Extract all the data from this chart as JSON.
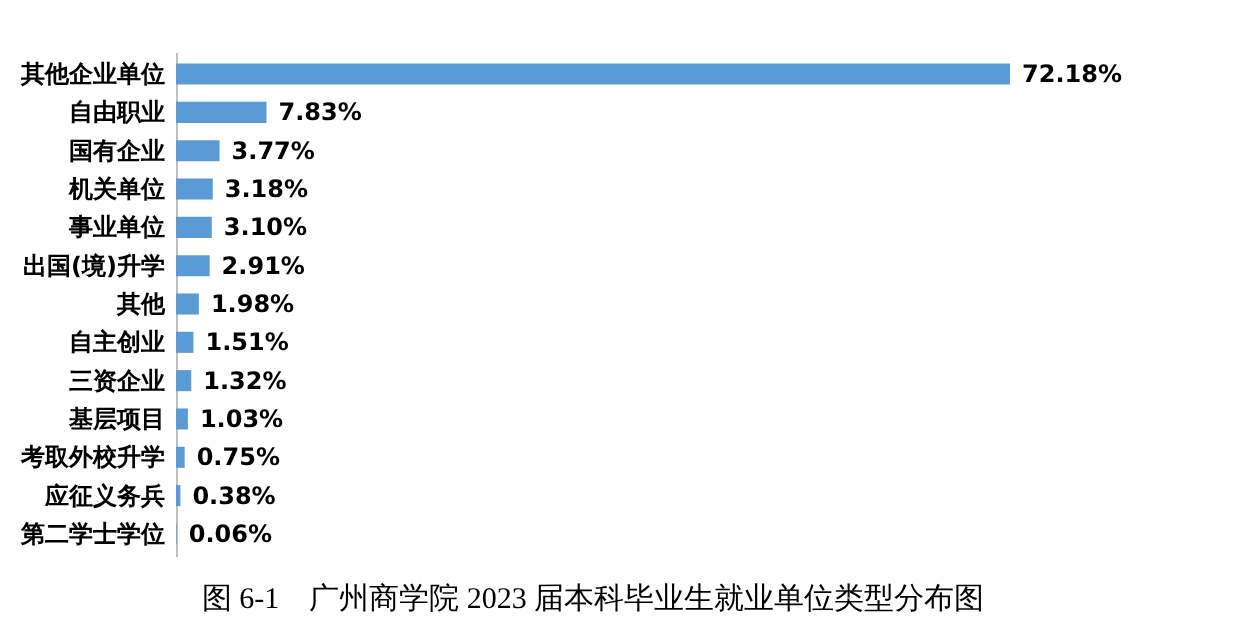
{
  "chart_data": {
    "type": "bar",
    "orientation": "horizontal",
    "title": "图 6-1　广州商学院 2023 届本科毕业生就业单位类型分布图",
    "categories": [
      "其他企业单位",
      "自由职业",
      "国有企业",
      "机关单位",
      "事业单位",
      "出国(境)升学",
      "其他",
      "自主创业",
      "三资企业",
      "基层项目",
      "考取外校升学",
      "应征义务兵",
      "第二学士学位"
    ],
    "values": [
      72.18,
      7.83,
      3.77,
      3.18,
      3.1,
      2.91,
      1.98,
      1.51,
      1.32,
      1.03,
      0.75,
      0.38,
      0.06
    ],
    "value_labels": [
      "72.18%",
      "7.83%",
      "3.77%",
      "3.18%",
      "3.10%",
      "2.91%",
      "1.98%",
      "1.51%",
      "1.32%",
      "1.03%",
      "0.75%",
      "0.38%",
      "0.06%"
    ],
    "color": "#5b9bd5"
  }
}
